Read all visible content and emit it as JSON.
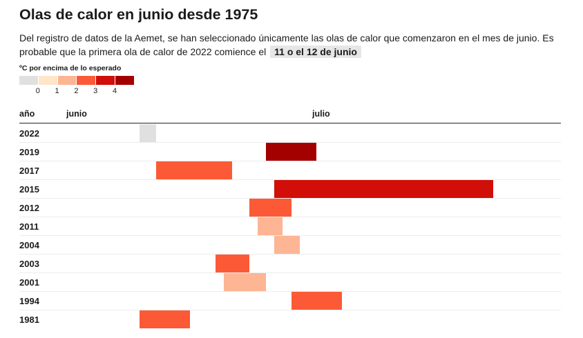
{
  "title": "Olas de calor en junio desde 1975",
  "subtitle_text": "Del registro de datos de la Aemet, se han seleccionado únicamente las olas de calor que comenzaron en el mes de junio. Es probable que la primera ola de calor de 2022 comience el",
  "subtitle_highlight": "11 o el 12 de junio",
  "legend": {
    "title": "ºC por encima de lo esperado",
    "colors": [
      "#e0e0e0",
      "#fee6c8",
      "#fdb594",
      "#fc5a36",
      "#d10e08",
      "#a30000"
    ],
    "ticks": [
      "0",
      "1",
      "2",
      "3",
      "4"
    ]
  },
  "chart_data": {
    "type": "bar",
    "orientation": "horizontal-range",
    "column_header": "año",
    "x_axis_labels": [
      "junio",
      "julio"
    ],
    "series": [
      {
        "year": "2022",
        "start": "06-11",
        "end": "06-12",
        "anomaly": 0
      },
      {
        "year": "2019",
        "start": "06-26",
        "end": "07-01",
        "anomaly": 4.5
      },
      {
        "year": "2017",
        "start": "06-13",
        "end": "06-21",
        "anomaly": 3
      },
      {
        "year": "2015",
        "start": "06-27",
        "end": "07-22",
        "anomaly": 4
      },
      {
        "year": "2012",
        "start": "06-24",
        "end": "06-28",
        "anomaly": 3
      },
      {
        "year": "2011",
        "start": "06-25",
        "end": "06-27",
        "anomaly": 2
      },
      {
        "year": "2004",
        "start": "06-27",
        "end": "06-29",
        "anomaly": 2
      },
      {
        "year": "2003",
        "start": "06-20",
        "end": "06-23",
        "anomaly": 3
      },
      {
        "year": "2001",
        "start": "06-21",
        "end": "06-25",
        "anomaly": 2
      },
      {
        "year": "1994",
        "start": "06-29",
        "end": "07-04",
        "anomaly": 3
      },
      {
        "year": "1981",
        "start": "06-11",
        "end": "06-16",
        "anomaly": 3
      }
    ]
  }
}
